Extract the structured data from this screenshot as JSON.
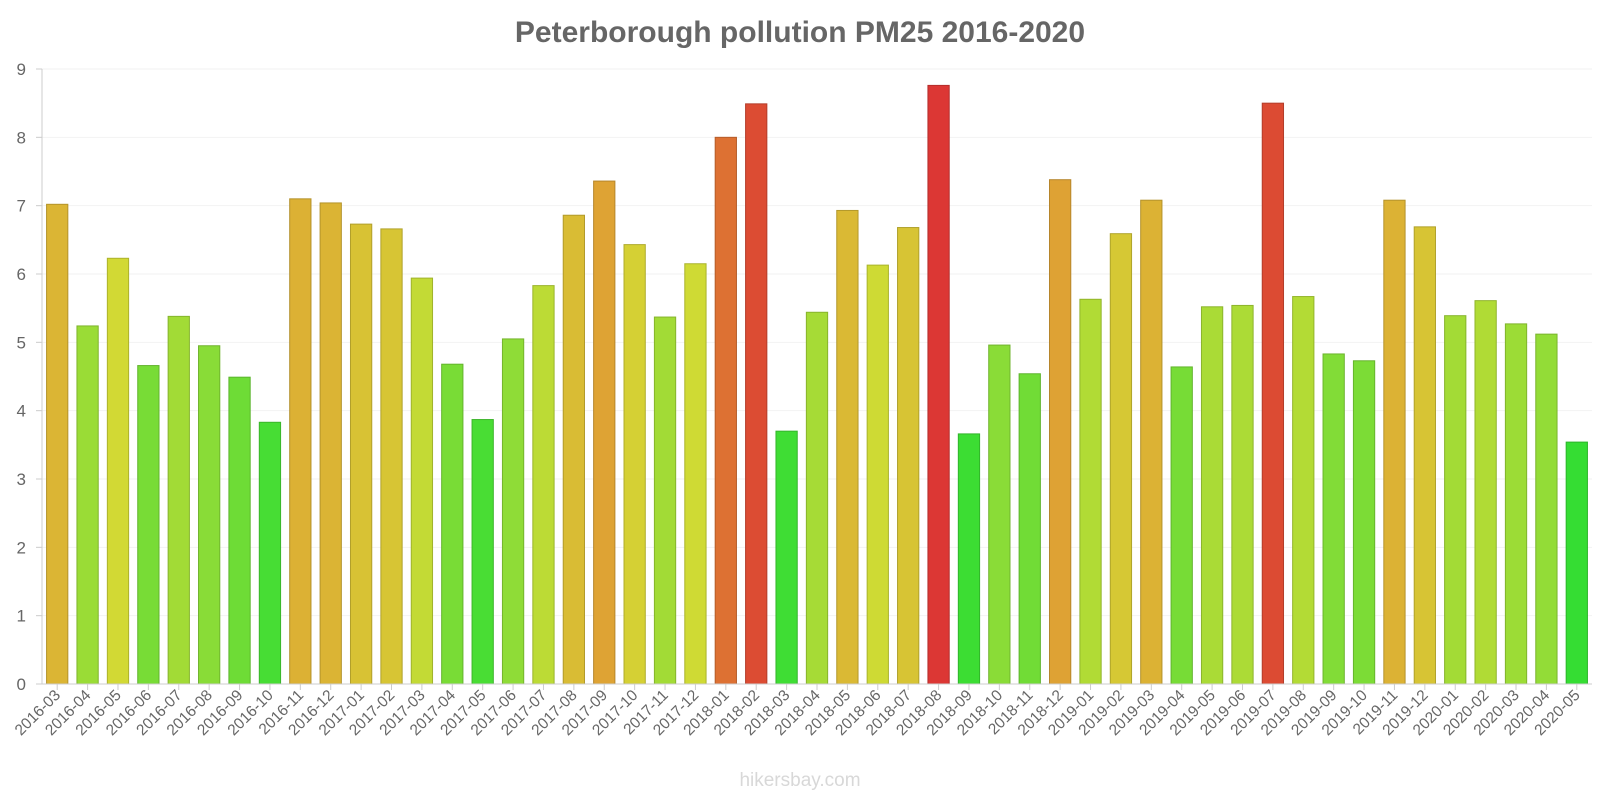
{
  "chart_data": {
    "type": "bar",
    "title": "Peterborough pollution PM25 2016-2020",
    "xlabel": "",
    "ylabel": "",
    "ylim": [
      0,
      9
    ],
    "yticks": [
      0,
      1,
      2,
      3,
      4,
      5,
      6,
      7,
      8,
      9
    ],
    "categories": [
      "2016-03",
      "2016-04",
      "2016-05",
      "2016-06",
      "2016-07",
      "2016-08",
      "2016-09",
      "2016-10",
      "2016-11",
      "2016-12",
      "2017-01",
      "2017-02",
      "2017-03",
      "2017-04",
      "2017-05",
      "2017-06",
      "2017-07",
      "2017-08",
      "2017-09",
      "2017-10",
      "2017-11",
      "2017-12",
      "2018-01",
      "2018-02",
      "2018-03",
      "2018-04",
      "2018-05",
      "2018-06",
      "2018-07",
      "2018-08",
      "2018-09",
      "2018-10",
      "2018-11",
      "2018-12",
      "2019-01",
      "2019-02",
      "2019-03",
      "2019-04",
      "2019-05",
      "2019-06",
      "2019-07",
      "2019-08",
      "2019-09",
      "2019-10",
      "2019-11",
      "2019-12",
      "2020-01",
      "2020-02",
      "2020-03",
      "2020-04",
      "2020-05"
    ],
    "values": [
      7.02,
      5.24,
      6.23,
      4.66,
      5.38,
      4.95,
      4.49,
      3.83,
      7.1,
      7.04,
      6.73,
      6.66,
      5.94,
      4.68,
      3.87,
      5.05,
      5.83,
      6.86,
      7.36,
      6.43,
      5.37,
      6.15,
      8.0,
      8.49,
      3.7,
      5.44,
      6.93,
      6.13,
      6.68,
      8.76,
      3.66,
      4.96,
      4.54,
      7.38,
      5.63,
      6.59,
      7.08,
      4.64,
      5.52,
      5.54,
      8.5,
      5.67,
      4.83,
      4.73,
      7.08,
      6.69,
      5.39,
      5.61,
      5.27,
      5.12,
      3.54
    ],
    "grid": true,
    "legend": "none"
  },
  "watermark": "hikersbay.com",
  "colors": {
    "low": "#33dd33",
    "mid": "#d8d030",
    "high": "#dd3333",
    "text": "#666666",
    "axis": "#cccccc"
  }
}
